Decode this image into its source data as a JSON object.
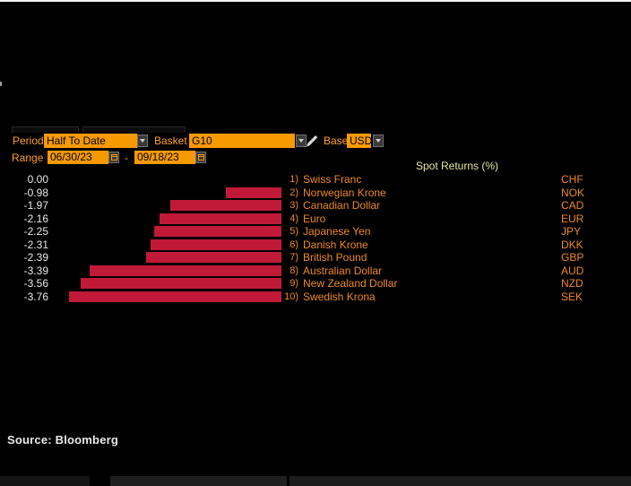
{
  "toolbar": {
    "period_label": "Period",
    "period_value": "Half To Date",
    "basket_label": "Basket",
    "basket_value": "G10",
    "base_label": "Base",
    "base_value": "USD",
    "range_label": "Range",
    "range_start": "06/30/23",
    "range_separator": "-",
    "range_end": "09/18/23"
  },
  "chart_data": {
    "type": "bar",
    "orientation": "horizontal",
    "title": "Spot Returns (%)",
    "categories": [
      "Swiss Franc",
      "Norwegian Krone",
      "Canadian Dollar",
      "Euro",
      "Japanese Yen",
      "Danish Krone",
      "British Pound",
      "Australian Dollar",
      "New Zealand Dollar",
      "Swedish Krona"
    ],
    "codes": [
      "CHF",
      "NOK",
      "CAD",
      "EUR",
      "JPY",
      "DKK",
      "GBP",
      "AUD",
      "NZD",
      "SEK"
    ],
    "rank_labels": [
      "1)",
      "2)",
      "3)",
      "4)",
      "5)",
      "6)",
      "7)",
      "8)",
      "9)",
      "10)"
    ],
    "values": [
      0.0,
      -0.98,
      -1.97,
      -2.16,
      -2.25,
      -2.31,
      -2.39,
      -3.39,
      -3.56,
      -3.76
    ],
    "value_labels": [
      "0.00",
      "-0.98",
      "-1.97",
      "-2.16",
      "-2.25",
      "-2.31",
      "-2.39",
      "-3.39",
      "-3.56",
      "-3.76"
    ],
    "xlim": [
      -3.76,
      0
    ],
    "bar_color": "#C11A38",
    "grid": false,
    "legend": false
  },
  "footer": {
    "source": "Source: Bloomberg"
  },
  "colors": {
    "background": "#000000",
    "toolbar_label_orange": "#FFA028",
    "field_orange": "#F79A00",
    "name_orange": "#ED8A21",
    "title_yellow": "#E8E89E",
    "value_white": "#E9E9E9",
    "bar_red": "#C11A38"
  }
}
